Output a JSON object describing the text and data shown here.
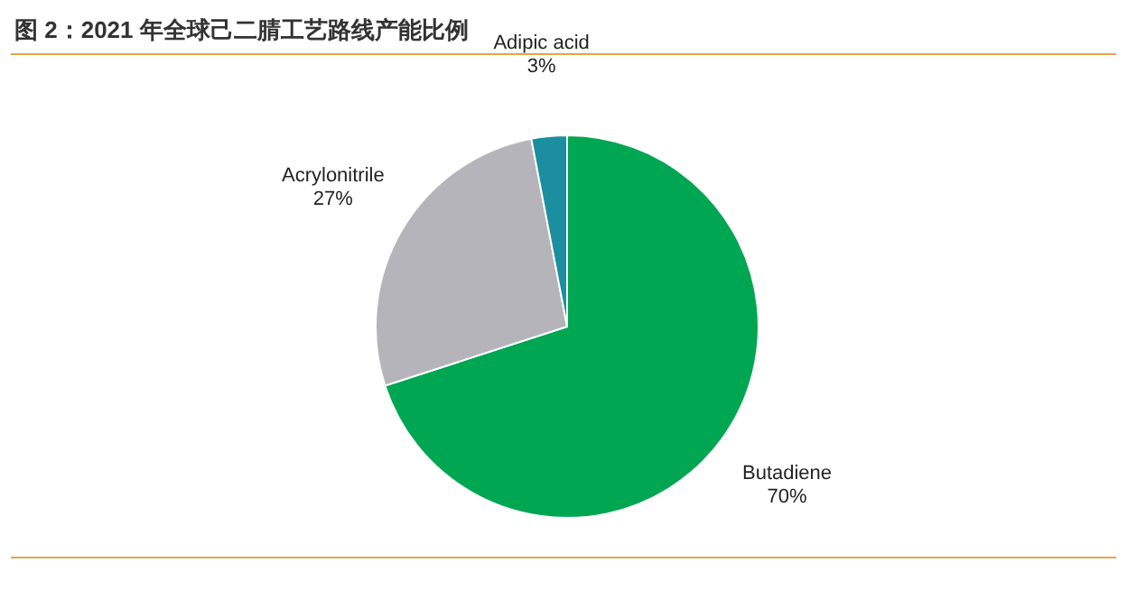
{
  "chart_data": {
    "type": "pie",
    "title": "图 2：2021 年全球己二腈工艺路线产能比例",
    "categories": [
      "Butadiene",
      "Acrylonitrile",
      "Adipic acid"
    ],
    "values": [
      70,
      27,
      3
    ],
    "colors": [
      "#00a651",
      "#b4b4ba",
      "#1b8fa0"
    ],
    "value_labels": [
      "70%",
      "27%",
      "3%"
    ]
  }
}
